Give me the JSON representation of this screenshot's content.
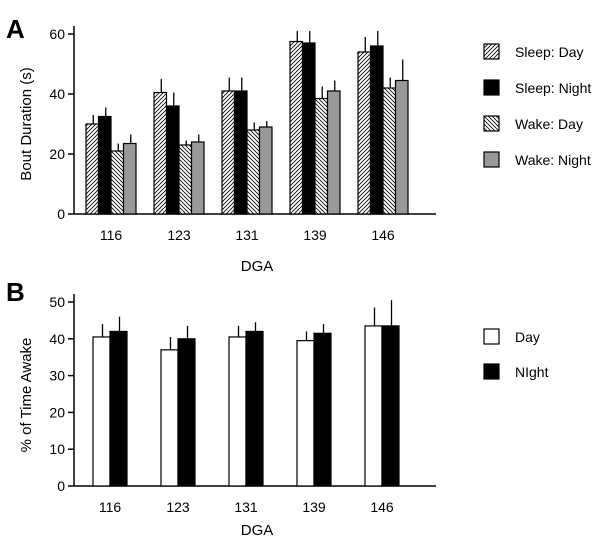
{
  "chart_data": [
    {
      "type": "bar",
      "panel_label": "A",
      "ylabel": "Bout Duration (s)",
      "xlabel": "DGA",
      "categories": [
        "116",
        "123",
        "131",
        "139",
        "146"
      ],
      "ylim": [
        0,
        60
      ],
      "yticks": [
        0,
        20,
        40,
        60
      ],
      "grid": false,
      "legend_position": "right",
      "series": [
        {
          "name": "Sleep: Day",
          "style": "hatch-forward",
          "color": "#ffffff",
          "values": [
            30,
            40.5,
            41,
            57.5,
            54
          ],
          "errors": [
            3,
            4.5,
            4.5,
            3.5,
            5
          ]
        },
        {
          "name": "Sleep: Night",
          "style": "solid",
          "color": "#000000",
          "values": [
            32.5,
            36,
            41,
            57,
            56
          ],
          "errors": [
            3,
            4.5,
            4.5,
            4,
            5
          ]
        },
        {
          "name": "Wake: Day",
          "style": "hatch-back",
          "color": "#ffffff",
          "values": [
            21,
            23,
            28,
            38.5,
            42
          ],
          "errors": [
            2.5,
            1.5,
            2.5,
            4,
            3.5
          ]
        },
        {
          "name": "Wake: Night",
          "style": "solid",
          "color": "#999999",
          "values": [
            23.5,
            24,
            29,
            41,
            44.5
          ],
          "errors": [
            3,
            2.5,
            2,
            3.5,
            7
          ]
        }
      ]
    },
    {
      "type": "bar",
      "panel_label": "B",
      "ylabel": "% of Time Awake",
      "xlabel": "DGA",
      "categories": [
        "116",
        "123",
        "131",
        "139",
        "146"
      ],
      "ylim": [
        0,
        50
      ],
      "yticks": [
        0,
        10,
        20,
        30,
        40,
        50
      ],
      "grid": false,
      "legend_position": "right",
      "series": [
        {
          "name": "Day",
          "style": "solid",
          "color": "#ffffff",
          "values": [
            40.5,
            37,
            40.5,
            39.5,
            43.5
          ],
          "errors": [
            3.5,
            3.5,
            3,
            2.5,
            5
          ]
        },
        {
          "name": "NIght",
          "style": "solid",
          "color": "#000000",
          "values": [
            42,
            40,
            42,
            41.5,
            43.5
          ],
          "errors": [
            4,
            3.5,
            2.5,
            2.5,
            7
          ]
        }
      ]
    }
  ]
}
